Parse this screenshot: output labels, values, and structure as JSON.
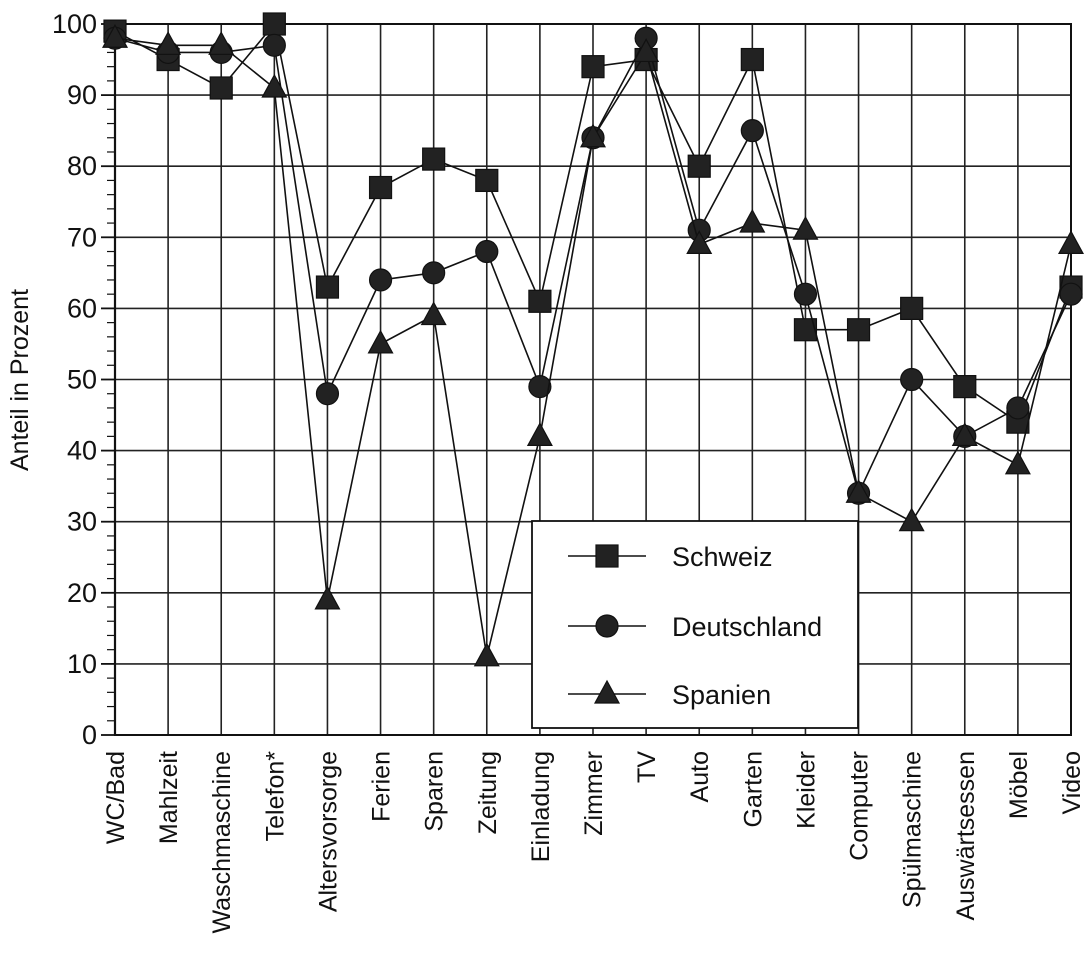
{
  "chart_data": {
    "type": "line",
    "title": "",
    "xlabel": "",
    "ylabel": "Anteil in Prozent",
    "ylim": [
      0,
      100
    ],
    "yticks": [
      "0",
      "10",
      "20",
      "30",
      "40",
      "50",
      "60",
      "70",
      "80",
      "90",
      "100"
    ],
    "grid": true,
    "legend_placement": "bottom-center",
    "categories": [
      "WC/Bad",
      "Mahlzeit",
      "Waschmaschine",
      "Telefon*",
      "Altersvorsorge",
      "Ferien",
      "Sparen",
      "Zeitung",
      "Einladung",
      "Zimmer",
      "TV",
      "Auto",
      "Garten",
      "Kleider",
      "Computer",
      "Spülmaschine",
      "Auswärtsessen",
      "Möbel",
      "Video"
    ],
    "series": [
      {
        "name": "Schweiz",
        "marker": "square",
        "values": [
          99,
          95,
          91,
          100,
          63,
          77,
          81,
          78,
          61,
          94,
          95,
          80,
          95,
          57,
          57,
          60,
          49,
          44,
          63
        ]
      },
      {
        "name": "Deutschland",
        "marker": "circle",
        "values": [
          98,
          96,
          96,
          97,
          48,
          64,
          65,
          68,
          49,
          84,
          98,
          71,
          85,
          62,
          34,
          50,
          42,
          46,
          62
        ]
      },
      {
        "name": "Spanien",
        "marker": "triangle",
        "values": [
          98,
          97,
          97,
          91,
          19,
          55,
          59,
          11,
          42,
          84,
          96,
          69,
          72,
          71,
          34,
          30,
          42,
          38,
          69
        ]
      }
    ]
  }
}
